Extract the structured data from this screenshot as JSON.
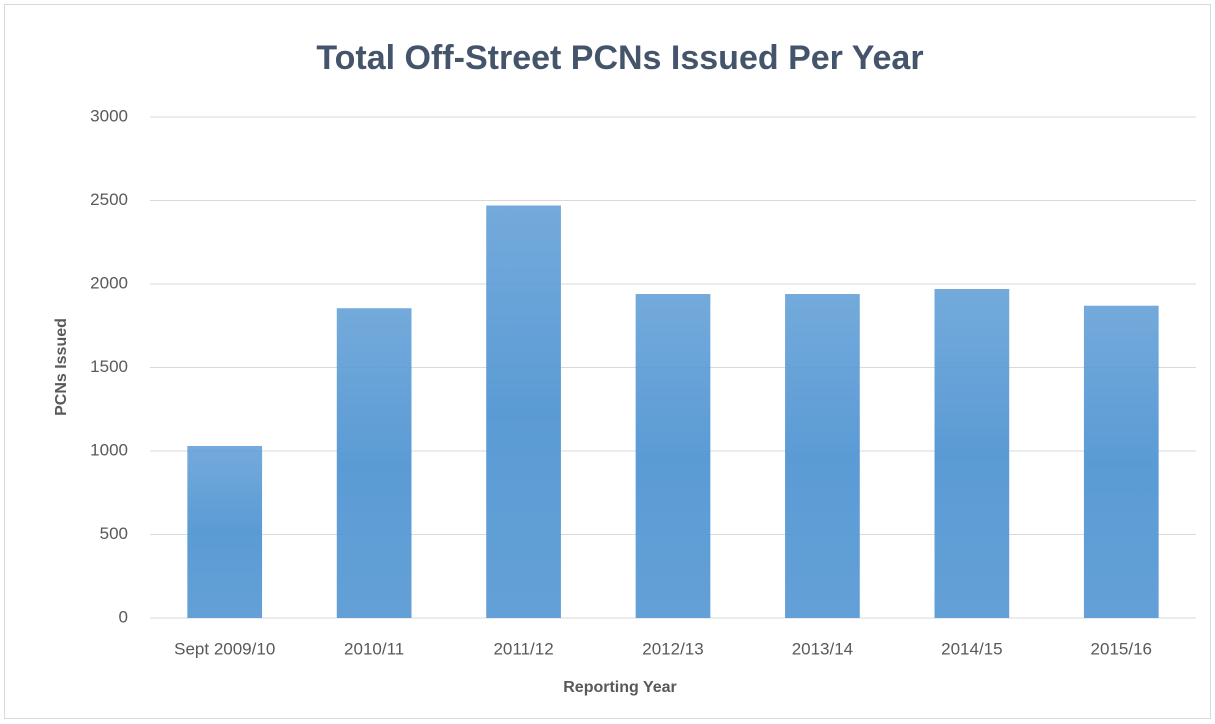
{
  "chart_data": {
    "type": "bar",
    "title": "Total Off-Street PCNs Issued Per Year",
    "x_label": "Reporting Year",
    "y_label": "PCNs Issued",
    "categories": [
      "Sept 2009/10",
      "2010/11",
      "2011/12",
      "2012/13",
      "2013/14",
      "2014/15",
      "2015/16"
    ],
    "values": [
      1030,
      1855,
      2470,
      1940,
      1940,
      1970,
      1870
    ],
    "color": "#5b9bd5",
    "ylim": [
      0,
      3000
    ],
    "yticks": [
      0,
      500,
      1000,
      1500,
      2000,
      2500,
      3000
    ],
    "grid": true
  }
}
